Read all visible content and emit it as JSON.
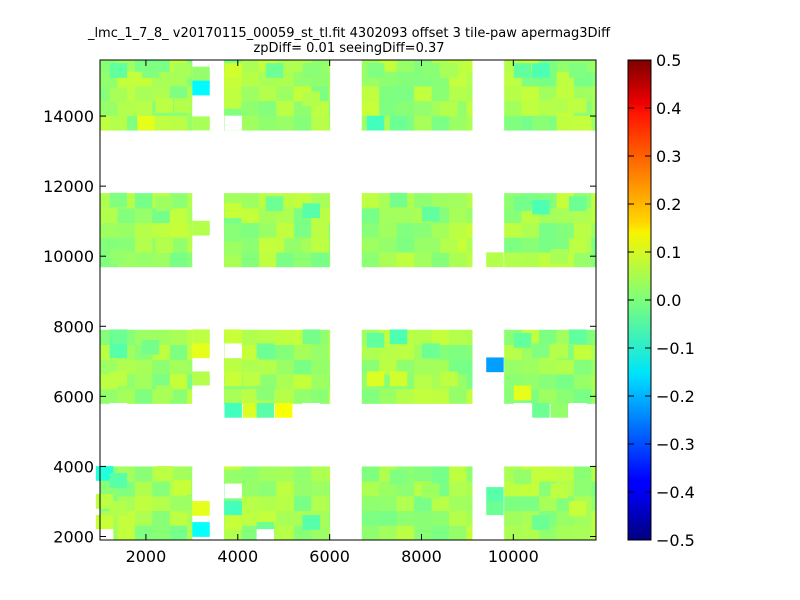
{
  "chart_data": {
    "type": "heatmap",
    "title": "_lmc_1_7_8_ v20170115_00059_st_tl.fit 4302093 offset 3 tile-paw apermag3Diff",
    "subtitle": "zpDiff= 0.01 seeingDiff=0.37",
    "xlabel": "",
    "ylabel": "",
    "xlim": [
      1000,
      11800
    ],
    "ylim": [
      1900,
      15600
    ],
    "x_ticks": [
      2000,
      4000,
      6000,
      8000,
      10000
    ],
    "y_ticks": [
      2000,
      4000,
      6000,
      8000,
      10000,
      12000,
      14000
    ],
    "colorbar": {
      "colormap": "jet",
      "vmin": -0.5,
      "vmax": 0.5,
      "ticks": [
        "0.5",
        "0.4",
        "0.3",
        "0.2",
        "0.1",
        "0.0",
        "−0.1",
        "−0.2",
        "−0.3",
        "−0.4",
        "−0.5"
      ]
    },
    "cell_size": [
      380,
      420
    ],
    "tile_columns": [
      {
        "x_range": [
          1000,
          3000
        ]
      },
      {
        "x_range": [
          3700,
          6000
        ]
      },
      {
        "x_range": [
          6700,
          9100
        ]
      },
      {
        "x_range": [
          9800,
          11800
        ]
      }
    ],
    "tile_rows": [
      {
        "y_range": [
          13600,
          15600
        ]
      },
      {
        "y_range": [
          9700,
          11800
        ]
      },
      {
        "y_range": [
          5800,
          7900
        ]
      },
      {
        "y_range": [
          1900,
          4000
        ]
      }
    ],
    "default_value": 0.03,
    "cells": [
      {
        "x": 3200,
        "y": 15200,
        "value": 0.02
      },
      {
        "x": 3200,
        "y": 14800,
        "value": -0.13
      },
      {
        "x": 3200,
        "y": 13800,
        "value": 0.04
      },
      {
        "x": 3900,
        "y": 15300,
        "value": 0.08
      },
      {
        "x": 3900,
        "y": 14000,
        "value": 0.0
      },
      {
        "x": 1400,
        "y": 15300,
        "value": -0.03
      },
      {
        "x": 2100,
        "y": 15300,
        "value": 0.0
      },
      {
        "x": 2800,
        "y": 15300,
        "value": 0.04
      },
      {
        "x": 4800,
        "y": 15300,
        "value": -0.02
      },
      {
        "x": 5600,
        "y": 15300,
        "value": 0.01
      },
      {
        "x": 7000,
        "y": 15300,
        "value": 0.0
      },
      {
        "x": 8200,
        "y": 15300,
        "value": 0.01
      },
      {
        "x": 8600,
        "y": 15300,
        "value": 0.04
      },
      {
        "x": 10200,
        "y": 15300,
        "value": -0.03
      },
      {
        "x": 10600,
        "y": 15300,
        "value": -0.05
      },
      {
        "x": 11400,
        "y": 15300,
        "value": 0.0
      },
      {
        "x": 2000,
        "y": 13800,
        "value": 0.1
      },
      {
        "x": 1400,
        "y": 13800,
        "value": 0.05
      },
      {
        "x": 7000,
        "y": 13800,
        "value": -0.06
      },
      {
        "x": 7500,
        "y": 13800,
        "value": -0.02
      },
      {
        "x": 10600,
        "y": 13800,
        "value": 0.01
      },
      {
        "x": 1400,
        "y": 14600,
        "value": 0.04
      },
      {
        "x": 2400,
        "y": 14300,
        "value": 0.06
      },
      {
        "x": 2800,
        "y": 14300,
        "value": 0.05
      },
      {
        "x": 5600,
        "y": 14500,
        "value": 0.05
      },
      {
        "x": 8600,
        "y": 14200,
        "value": 0.05
      },
      {
        "x": 11000,
        "y": 14300,
        "value": 0.05
      },
      {
        "x": 11400,
        "y": 14300,
        "value": 0.06
      },
      {
        "x": 3200,
        "y": 10800,
        "value": 0.05
      },
      {
        "x": 3900,
        "y": 11300,
        "value": 0.07
      },
      {
        "x": 3900,
        "y": 10200,
        "value": 0.03
      },
      {
        "x": 1400,
        "y": 11600,
        "value": 0.0
      },
      {
        "x": 2400,
        "y": 11500,
        "value": 0.03
      },
      {
        "x": 4800,
        "y": 11500,
        "value": -0.02
      },
      {
        "x": 5600,
        "y": 11300,
        "value": -0.04
      },
      {
        "x": 7500,
        "y": 11600,
        "value": -0.01
      },
      {
        "x": 8200,
        "y": 11200,
        "value": -0.03
      },
      {
        "x": 10200,
        "y": 11500,
        "value": -0.01
      },
      {
        "x": 10600,
        "y": 11400,
        "value": -0.05
      },
      {
        "x": 11400,
        "y": 11500,
        "value": -0.02
      },
      {
        "x": 1400,
        "y": 10000,
        "value": 0.02
      },
      {
        "x": 2400,
        "y": 10300,
        "value": 0.05
      },
      {
        "x": 5200,
        "y": 10300,
        "value": 0.02
      },
      {
        "x": 8600,
        "y": 10300,
        "value": 0.05
      },
      {
        "x": 9600,
        "y": 9900,
        "value": 0.05
      },
      {
        "x": 11000,
        "y": 10000,
        "value": 0.04
      },
      {
        "x": 11400,
        "y": 10300,
        "value": 0.06
      },
      {
        "x": 3200,
        "y": 7700,
        "value": 0.06
      },
      {
        "x": 3200,
        "y": 7300,
        "value": 0.1
      },
      {
        "x": 3200,
        "y": 6500,
        "value": 0.05
      },
      {
        "x": 3900,
        "y": 7700,
        "value": 0.07
      },
      {
        "x": 3900,
        "y": 6500,
        "value": 0.07
      },
      {
        "x": 3900,
        "y": 5600,
        "value": -0.06
      },
      {
        "x": 4300,
        "y": 5600,
        "value": 0.09
      },
      {
        "x": 4600,
        "y": 5600,
        "value": -0.04
      },
      {
        "x": 5000,
        "y": 5600,
        "value": 0.12
      },
      {
        "x": 1400,
        "y": 7700,
        "value": -0.02
      },
      {
        "x": 1400,
        "y": 7300,
        "value": -0.04
      },
      {
        "x": 2100,
        "y": 7400,
        "value": -0.01
      },
      {
        "x": 4600,
        "y": 7300,
        "value": -0.02
      },
      {
        "x": 5600,
        "y": 7700,
        "value": -0.01
      },
      {
        "x": 7000,
        "y": 7600,
        "value": -0.03
      },
      {
        "x": 7500,
        "y": 7700,
        "value": -0.05
      },
      {
        "x": 8200,
        "y": 7300,
        "value": -0.02
      },
      {
        "x": 9600,
        "y": 6900,
        "value": -0.22
      },
      {
        "x": 10200,
        "y": 7600,
        "value": -0.03
      },
      {
        "x": 10600,
        "y": 7300,
        "value": 0.0
      },
      {
        "x": 11000,
        "y": 7300,
        "value": 0.05
      },
      {
        "x": 11400,
        "y": 7700,
        "value": -0.03
      },
      {
        "x": 1400,
        "y": 6500,
        "value": 0.06
      },
      {
        "x": 2400,
        "y": 6100,
        "value": 0.04
      },
      {
        "x": 4300,
        "y": 6500,
        "value": 0.06
      },
      {
        "x": 4600,
        "y": 6100,
        "value": 0.01
      },
      {
        "x": 7000,
        "y": 6500,
        "value": 0.09
      },
      {
        "x": 7500,
        "y": 6500,
        "value": 0.08
      },
      {
        "x": 8600,
        "y": 6500,
        "value": 0.06
      },
      {
        "x": 10200,
        "y": 6100,
        "value": 0.1
      },
      {
        "x": 10600,
        "y": 5600,
        "value": -0.02
      },
      {
        "x": 11000,
        "y": 5600,
        "value": 0.02
      },
      {
        "x": 3900,
        "y": 3700,
        "value": 0.02
      },
      {
        "x": 3200,
        "y": 2800,
        "value": 0.1
      },
      {
        "x": 3200,
        "y": 2200,
        "value": -0.12
      },
      {
        "x": 3900,
        "y": 2800,
        "value": -0.06
      },
      {
        "x": 3900,
        "y": 2400,
        "value": 0.07
      },
      {
        "x": 1100,
        "y": 3800,
        "value": -0.09
      },
      {
        "x": 1400,
        "y": 3600,
        "value": -0.04
      },
      {
        "x": 2400,
        "y": 3800,
        "value": 0.06
      },
      {
        "x": 2800,
        "y": 3400,
        "value": 0.07
      },
      {
        "x": 1100,
        "y": 3000,
        "value": 0.06
      },
      {
        "x": 1100,
        "y": 2400,
        "value": 0.07
      },
      {
        "x": 1400,
        "y": 2800,
        "value": 0.05
      },
      {
        "x": 4600,
        "y": 2200,
        "value": -0.02
      },
      {
        "x": 5600,
        "y": 2400,
        "value": -0.04
      },
      {
        "x": 7500,
        "y": 3700,
        "value": 0.0
      },
      {
        "x": 8200,
        "y": 3300,
        "value": 0.03
      },
      {
        "x": 9600,
        "y": 3200,
        "value": -0.04
      },
      {
        "x": 9600,
        "y": 2800,
        "value": -0.02
      },
      {
        "x": 10200,
        "y": 3700,
        "value": 0.02
      },
      {
        "x": 10600,
        "y": 2400,
        "value": -0.02
      },
      {
        "x": 11000,
        "y": 3300,
        "value": 0.06
      },
      {
        "x": 11400,
        "y": 2800,
        "value": 0.07
      }
    ],
    "missing": [
      {
        "x": 3200,
        "y": 14200
      },
      {
        "x": 3900,
        "y": 13800
      },
      {
        "x": 3200,
        "y": 11500
      },
      {
        "x": 3200,
        "y": 10000
      },
      {
        "x": 3900,
        "y": 7300
      },
      {
        "x": 3200,
        "y": 6100
      },
      {
        "x": 3200,
        "y": 5800
      },
      {
        "x": 3900,
        "y": 3300
      },
      {
        "x": 3200,
        "y": 3700
      },
      {
        "x": 3200,
        "y": 3300
      },
      {
        "x": 9600,
        "y": 11500
      },
      {
        "x": 9600,
        "y": 7700
      },
      {
        "x": 9600,
        "y": 6100
      },
      {
        "x": 9600,
        "y": 3700
      },
      {
        "x": 9600,
        "y": 2400
      },
      {
        "x": 10200,
        "y": 5600
      },
      {
        "x": 11400,
        "y": 5600
      },
      {
        "x": 1400,
        "y": 5600
      },
      {
        "x": 5600,
        "y": 5600
      },
      {
        "x": 4600,
        "y": 2000
      },
      {
        "x": 1100,
        "y": 2000
      }
    ]
  }
}
